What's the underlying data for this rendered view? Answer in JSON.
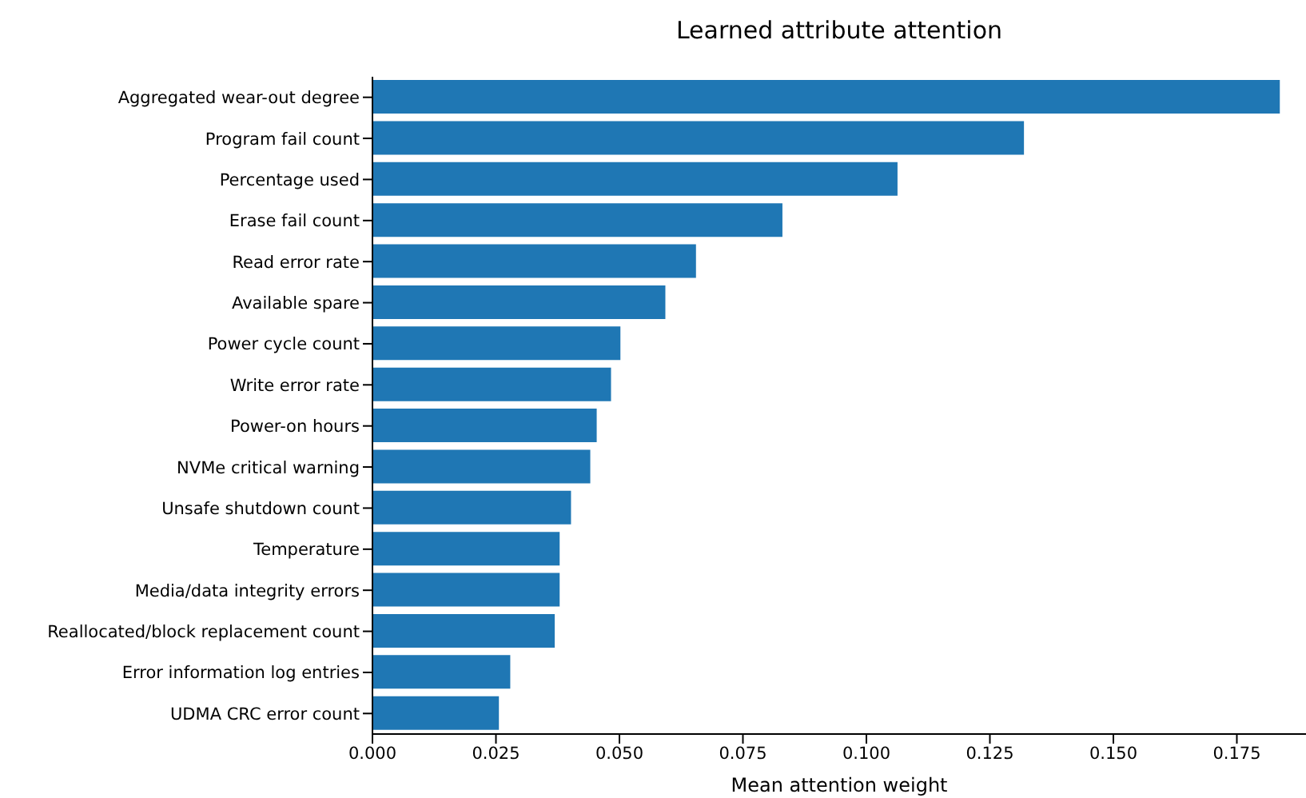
{
  "chart_data": {
    "type": "bar",
    "orientation": "horizontal",
    "title": "Learned attribute attention",
    "xlabel": "Mean attention weight",
    "categories": [
      "Aggregated wear-out degree",
      "Program fail count",
      "Percentage used",
      "Erase fail count",
      "Read error rate",
      "Available spare",
      "Power cycle count",
      "Write error rate",
      "Power-on hours",
      "NVMe critical warning",
      "Unsafe shutdown count",
      "Temperature",
      "Media/data integrity errors",
      "Reallocated/block replacement count",
      "Error information log entries",
      "UDMA CRC error count"
    ],
    "values": [
      0.1837,
      0.1319,
      0.1063,
      0.083,
      0.0655,
      0.0593,
      0.0502,
      0.0483,
      0.0454,
      0.0441,
      0.0402,
      0.0379,
      0.0379,
      0.0369,
      0.0279,
      0.0256
    ],
    "color": "#1f77b4",
    "xlim": [
      0,
      0.189
    ],
    "xticks": [
      {
        "value": 0,
        "label": "0.000"
      },
      {
        "value": 0.025,
        "label": "0.025"
      },
      {
        "value": 0.05,
        "label": "0.050"
      },
      {
        "value": 0.075,
        "label": "0.075"
      },
      {
        "value": 0.1,
        "label": "0.100"
      },
      {
        "value": 0.125,
        "label": "0.125"
      },
      {
        "value": 0.15,
        "label": "0.150"
      },
      {
        "value": 0.175,
        "label": "0.175"
      }
    ],
    "grid": false,
    "legend": false
  }
}
